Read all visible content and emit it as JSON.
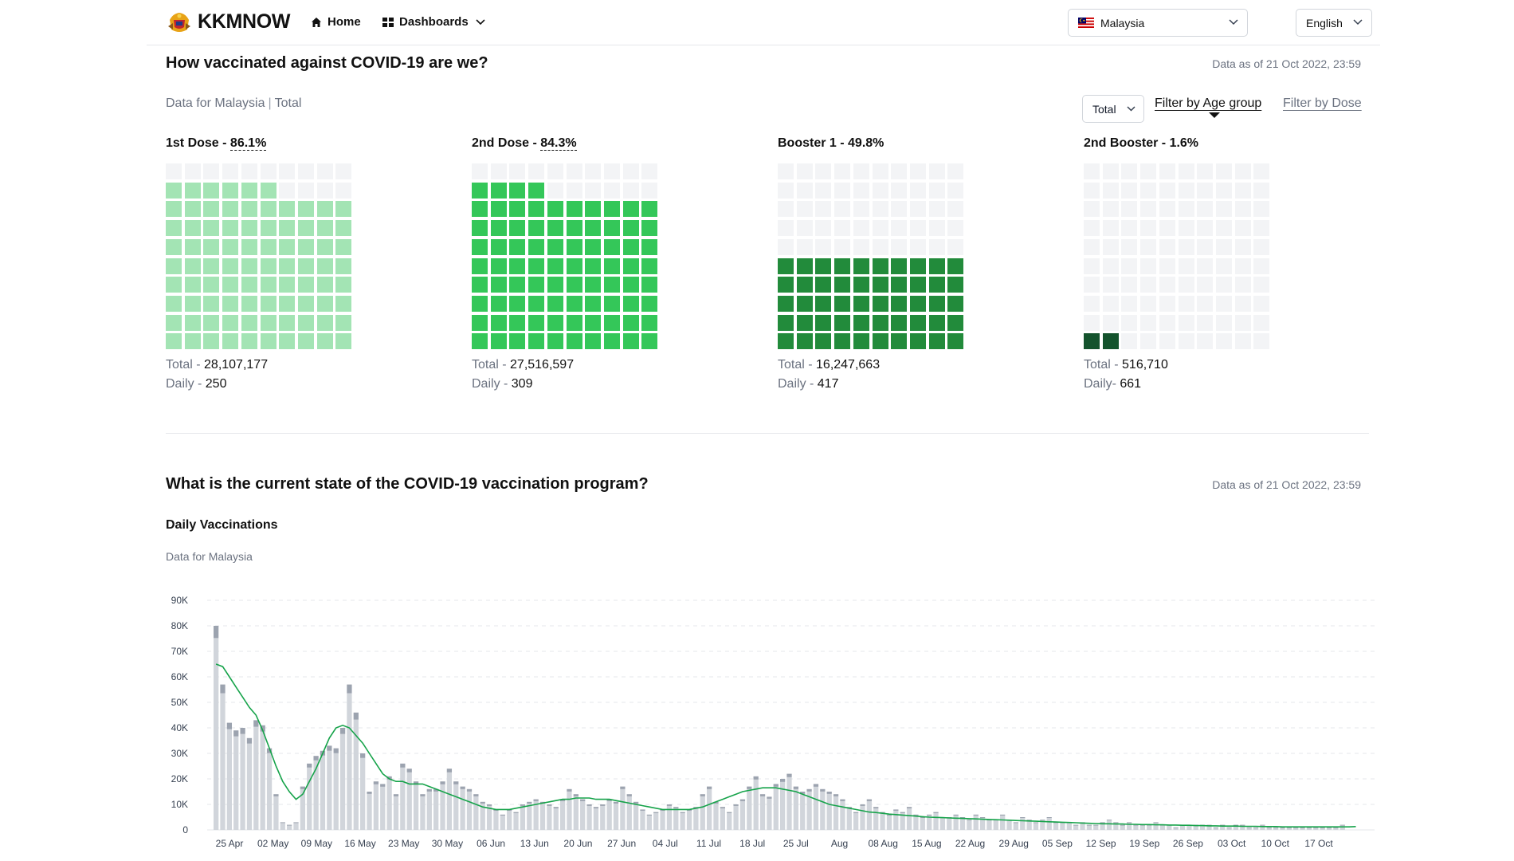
{
  "header": {
    "brand": "KKMNOW",
    "nav": [
      {
        "label": "Home",
        "icon": "home-icon"
      },
      {
        "label": "Dashboards",
        "icon": "dashboard-icon"
      }
    ],
    "country_select": {
      "value": "Malaysia",
      "icon": "malaysia-flag-icon"
    },
    "language_select": {
      "value": "English"
    }
  },
  "section1": {
    "title": "How vaccinated against COVID-19 are we?",
    "as_of": "Data as of 21 Oct 2022, 23:59",
    "subtitle_region": "Data for Malaysia",
    "subtitle_sep": "|",
    "subtitle_filter": "Total",
    "filter_select": "Total",
    "filter_age": "Filter by Age group",
    "filter_dose": "Filter by Dose",
    "doses": [
      {
        "label": "1st Dose - ",
        "pct": "86.1%",
        "pct_value": 86.1,
        "color": "#a3e4b4",
        "total_label": "Total - ",
        "total": "28,107,177",
        "daily_label": "Daily - ",
        "daily": "250",
        "dotted": true
      },
      {
        "label": "2nd Dose - ",
        "pct": "84.3%",
        "pct_value": 84.3,
        "color": "#34c759",
        "total_label": "Total - ",
        "total": "27,516,597",
        "daily_label": "Daily - ",
        "daily": "309",
        "dotted": true
      },
      {
        "label": "Booster 1 - ",
        "pct": "49.8%",
        "pct_value": 49.8,
        "color": "#228b3b",
        "total_label": "Total - ",
        "total": "16,247,663",
        "daily_label": "Daily - ",
        "daily": "417",
        "dotted": false
      },
      {
        "label": "2nd Booster - ",
        "pct": "1.6%",
        "pct_value": 1.6,
        "color": "#14532d",
        "total_label": "Total - ",
        "total": "516,710",
        "daily_label": "Daily- ",
        "daily": "661",
        "dotted": false
      }
    ]
  },
  "section2": {
    "title": "What is the current state of the COVID-19 vaccination program?",
    "as_of": "Data as of 21 Oct 2022, 23:59",
    "chart_title": "Daily Vaccinations",
    "chart_subtitle": "Data for Malaysia"
  },
  "chart_data": {
    "type": "bar",
    "title": "Daily Vaccinations",
    "subtitle": "Data for Malaysia",
    "xlabel": "",
    "ylabel": "",
    "ylim": [
      0,
      90000
    ],
    "y_ticks": [
      "0",
      "10K",
      "20K",
      "30K",
      "40K",
      "50K",
      "60K",
      "70K",
      "80K",
      "90K"
    ],
    "x_tick_labels": [
      "25 Apr",
      "02 May",
      "09 May",
      "16 May",
      "23 May",
      "30 May",
      "06 Jun",
      "13 Jun",
      "20 Jun",
      "27 Jun",
      "04 Jul",
      "11 Jul",
      "18 Jul",
      "25 Jul",
      "Aug",
      "08 Aug",
      "15 Aug",
      "22 Aug",
      "29 Aug",
      "05 Sep",
      "12 Sep",
      "19 Sep",
      "26 Sep",
      "03 Oct",
      "10 Oct",
      "17 Oct"
    ],
    "grid": true,
    "bar_colors": {
      "base": "#d1d5db",
      "top": "#9ca3af"
    },
    "line_color": "#16a34a",
    "daily_totals": [
      80000,
      57000,
      42000,
      39000,
      40000,
      36000,
      43000,
      41000,
      32000,
      14000,
      3000,
      2000,
      3000,
      17000,
      26000,
      29000,
      31000,
      33000,
      32000,
      40000,
      57000,
      46000,
      30000,
      15000,
      19000,
      18000,
      21000,
      14000,
      26000,
      24000,
      19000,
      14000,
      16000,
      16000,
      19000,
      24000,
      19000,
      17000,
      16000,
      14000,
      11000,
      10000,
      8000,
      6000,
      8000,
      7000,
      10000,
      11000,
      12000,
      11000,
      10000,
      9000,
      12000,
      16000,
      14000,
      12000,
      10000,
      9000,
      10000,
      12000,
      11000,
      17000,
      14000,
      11000,
      8000,
      6000,
      7000,
      8000,
      10000,
      9000,
      7000,
      8000,
      9000,
      14000,
      17000,
      11000,
      9000,
      7000,
      10000,
      12000,
      17000,
      21000,
      14000,
      13000,
      18000,
      20000,
      22000,
      17000,
      15000,
      16000,
      18000,
      16000,
      15000,
      14000,
      12000,
      9000,
      7000,
      10000,
      12000,
      9000,
      7000,
      6000,
      8000,
      7000,
      9000,
      6000,
      5000,
      6000,
      7000,
      5000,
      5000,
      6000,
      5000,
      4000,
      6000,
      5000,
      4000,
      4000,
      6000,
      4000,
      3000,
      5000,
      4000,
      3000,
      4000,
      5000,
      3000,
      3000,
      3000,
      2000,
      3000,
      2000,
      2000,
      3000,
      4000,
      3000,
      2000,
      3000,
      2000,
      2000,
      2000,
      3000,
      2000,
      2000,
      1000,
      2000,
      2000,
      2000,
      2000,
      2000,
      1000,
      2000,
      1000,
      2000,
      2000,
      1000,
      1000,
      2000,
      1000,
      1000,
      1000,
      1000,
      1000,
      1000,
      1000,
      1000,
      1000,
      1000,
      1000,
      2000
    ],
    "moving_average": [
      65000,
      64000,
      60000,
      56000,
      52000,
      48000,
      45000,
      39000,
      32000,
      25000,
      19000,
      15000,
      12000,
      14000,
      19000,
      24000,
      30000,
      36000,
      40000,
      41000,
      40000,
      37000,
      34000,
      30000,
      26000,
      22000,
      20000,
      19000,
      19000,
      18000,
      18000,
      18000,
      17000,
      16000,
      15000,
      14000,
      13000,
      12000,
      11000,
      10000,
      9000,
      8500,
      8000,
      8000,
      8000,
      8500,
      9000,
      9500,
      10000,
      10500,
      11000,
      11500,
      12000,
      12000,
      12500,
      12500,
      12500,
      12000,
      12000,
      12000,
      11500,
      11000,
      10500,
      10000,
      9500,
      9000,
      8500,
      8000,
      8000,
      8000,
      8000,
      8000,
      8500,
      9000,
      10000,
      11000,
      12000,
      13000,
      14000,
      15000,
      15500,
      16000,
      16500,
      16500,
      16500,
      16000,
      15500,
      15000,
      14000,
      13000,
      12000,
      11000,
      10000,
      9500,
      9000,
      8500,
      8000,
      7500,
      7000,
      6800,
      6500,
      6200,
      6000,
      5800,
      5600,
      5400,
      5200,
      5000,
      4900,
      4800,
      4700,
      4600,
      4500,
      4400,
      4300,
      4200,
      4100,
      4000,
      3900,
      3800,
      3700,
      3600,
      3500,
      3400,
      3300,
      3200,
      3100,
      3000,
      2900,
      2800,
      2700,
      2600,
      2500,
      2400,
      2400,
      2300,
      2300,
      2200,
      2200,
      2100,
      2100,
      2000,
      2000,
      1900,
      1900,
      1800,
      1800,
      1700,
      1700,
      1600,
      1600,
      1500,
      1500,
      1500,
      1400,
      1400,
      1400,
      1300,
      1300,
      1300,
      1200,
      1200,
      1200,
      1200,
      1200,
      1200,
      1200,
      1200,
      1200,
      1200,
      1200,
      1300
    ]
  }
}
